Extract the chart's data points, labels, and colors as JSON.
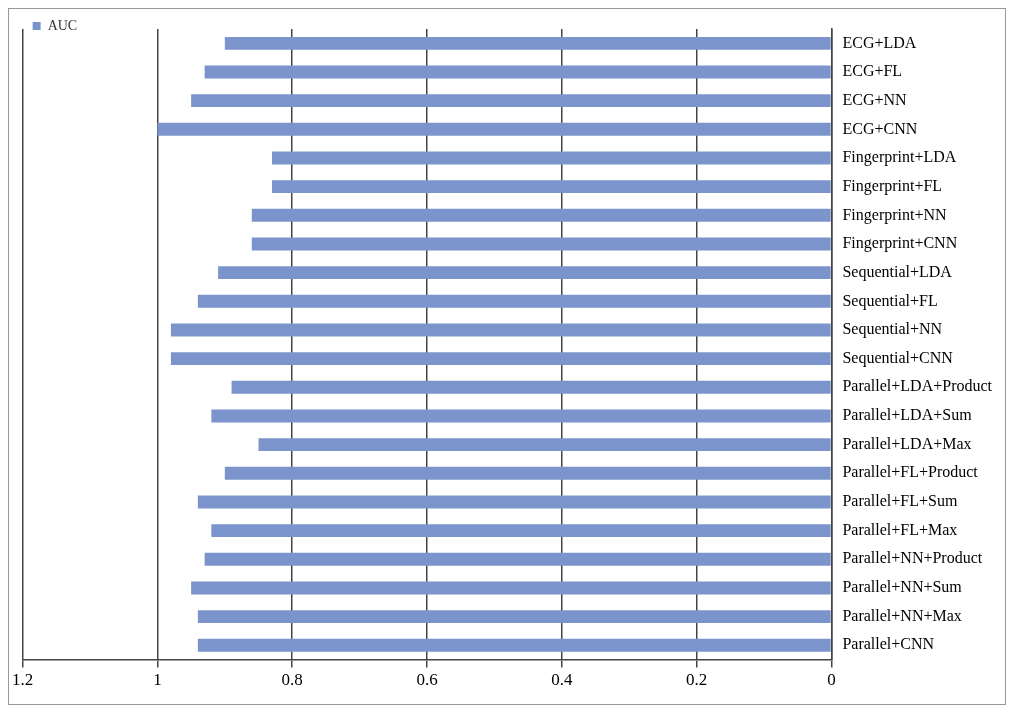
{
  "chart_data": {
    "type": "bar",
    "orientation": "horizontal",
    "categories": [
      "ECG+LDA",
      "ECG+FL",
      "ECG+NN",
      "ECG+CNN",
      "Fingerprint+LDA",
      "Fingerprint+FL",
      "Fingerprint+NN",
      "Fingerprint+CNN",
      "Sequential+LDA",
      "Sequential+FL",
      "Sequential+NN",
      "Sequential+CNN",
      "Parallel+LDA+Product",
      "Parallel+LDA+Sum",
      "Parallel+LDA+Max",
      "Parallel+FL+Product",
      "Parallel+FL+Sum",
      "Parallel+FL+Max",
      "Parallel+NN+Product",
      "Parallel+NN+Sum",
      "Parallel+NN+Max",
      "Parallel+CNN"
    ],
    "series": [
      {
        "name": "AUC",
        "color": "#7b95cc",
        "values": [
          0.9,
          0.93,
          0.95,
          1.0,
          0.83,
          0.83,
          0.86,
          0.86,
          0.91,
          0.94,
          0.98,
          0.98,
          0.89,
          0.92,
          0.85,
          0.9,
          0.94,
          0.92,
          0.93,
          0.95,
          0.94,
          0.94
        ]
      }
    ],
    "xlim": [
      1.2,
      0
    ],
    "xticks": [
      1.2,
      1,
      0.8,
      0.6,
      0.4,
      0.2,
      0
    ],
    "grid": "x",
    "legend": "top left"
  }
}
